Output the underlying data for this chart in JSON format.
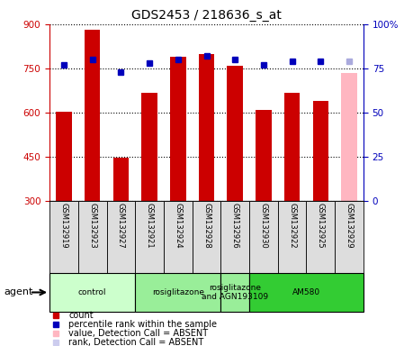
{
  "title": "GDS2453 / 218636_s_at",
  "samples": [
    "GSM132919",
    "GSM132923",
    "GSM132927",
    "GSM132921",
    "GSM132924",
    "GSM132928",
    "GSM132926",
    "GSM132930",
    "GSM132922",
    "GSM132925",
    "GSM132929"
  ],
  "bar_values": [
    603,
    880,
    445,
    668,
    790,
    800,
    758,
    608,
    668,
    640,
    735
  ],
  "bar_colors": [
    "#cc0000",
    "#cc0000",
    "#cc0000",
    "#cc0000",
    "#cc0000",
    "#cc0000",
    "#cc0000",
    "#cc0000",
    "#cc0000",
    "#cc0000",
    "#ffb6c1"
  ],
  "dot_values": [
    77,
    80,
    73,
    78,
    80,
    82,
    80,
    77,
    79,
    79,
    79
  ],
  "dot_colors": [
    "#0000bb",
    "#0000bb",
    "#0000bb",
    "#0000bb",
    "#0000bb",
    "#0000bb",
    "#0000bb",
    "#0000bb",
    "#0000bb",
    "#0000bb",
    "#aaaadd"
  ],
  "ylim_left": [
    300,
    900
  ],
  "ylim_right": [
    0,
    100
  ],
  "yticks_left": [
    300,
    450,
    600,
    750,
    900
  ],
  "yticks_right": [
    0,
    25,
    50,
    75,
    100
  ],
  "ytick_labels_right": [
    "0",
    "25",
    "50",
    "75",
    "100%"
  ],
  "agent_groups": [
    {
      "label": "control",
      "start": 0,
      "end": 2,
      "color": "#ccffcc"
    },
    {
      "label": "rosiglitazone",
      "start": 3,
      "end": 5,
      "color": "#99ee99"
    },
    {
      "label": "rosiglitazone\nand AGN193109",
      "start": 6,
      "end": 6,
      "color": "#99ee99"
    },
    {
      "label": "AM580",
      "start": 7,
      "end": 10,
      "color": "#33cc33"
    }
  ],
  "legend_items": [
    {
      "color": "#cc0000",
      "label": "count"
    },
    {
      "color": "#0000bb",
      "label": "percentile rank within the sample"
    },
    {
      "color": "#ffb6c1",
      "label": "value, Detection Call = ABSENT"
    },
    {
      "color": "#ccccee",
      "label": "rank, Detection Call = ABSENT"
    }
  ],
  "agent_label": "agent",
  "background_color": "#ffffff",
  "sample_box_color": "#dddddd",
  "grid_color": "#000000"
}
